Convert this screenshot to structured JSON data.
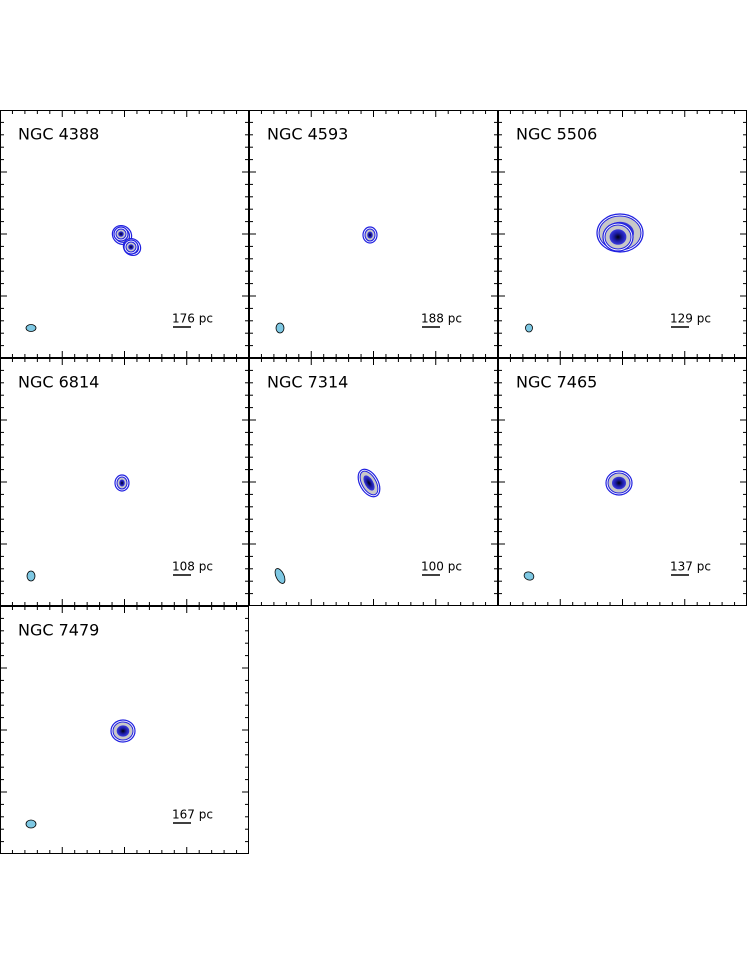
{
  "panels": [
    {
      "name": "NGC 4388",
      "scale": "176 pc"
    },
    {
      "name": "NGC 4593",
      "scale": "188 pc"
    },
    {
      "name": "NGC 5506",
      "scale": "129 pc"
    },
    {
      "name": "NGC 6814",
      "scale": "108 pc"
    },
    {
      "name": "NGC 7314",
      "scale": "100 pc"
    },
    {
      "name": "NGC 7465",
      "scale": "137 pc"
    },
    {
      "name": "NGC 7479",
      "scale": "167 pc"
    }
  ]
}
